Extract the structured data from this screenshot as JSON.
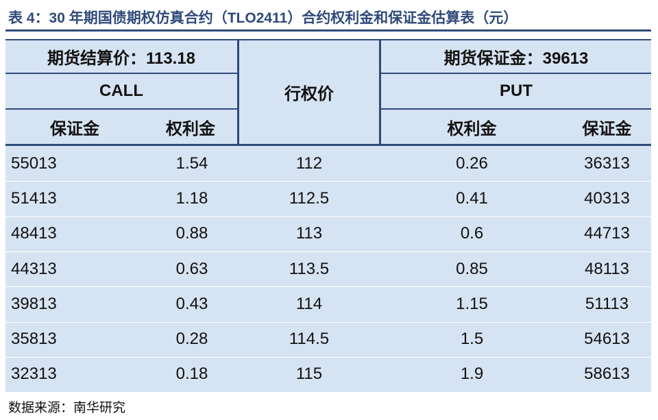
{
  "title": "表 4：30 年期国债期权仿真合约（TLO2411）合约权利金和保证金估算表（元）",
  "table": {
    "header": {
      "futures_price": "期货结算价：113.18",
      "futures_margin": "期货保证金：39613",
      "call": "CALL",
      "strike": "行权价",
      "put": "PUT",
      "call_columns": [
        "保证金",
        "权利金"
      ],
      "put_columns": [
        "权利金",
        "保证金"
      ]
    },
    "rows": [
      [
        "55013",
        "1.54",
        "112",
        "0.26",
        "36313"
      ],
      [
        "51413",
        "1.18",
        "112.5",
        "0.41",
        "40313"
      ],
      [
        "48413",
        "0.88",
        "113",
        "0.6",
        "44713"
      ],
      [
        "44313",
        "0.63",
        "113.5",
        "0.85",
        "48113"
      ],
      [
        "39813",
        "0.43",
        "114",
        "1.15",
        "51113"
      ],
      [
        "35813",
        "0.28",
        "114.5",
        "1.5",
        "54613"
      ],
      [
        "32313",
        "0.18",
        "115",
        "1.9",
        "58613"
      ]
    ]
  },
  "source": "数据来源：南华研究"
}
